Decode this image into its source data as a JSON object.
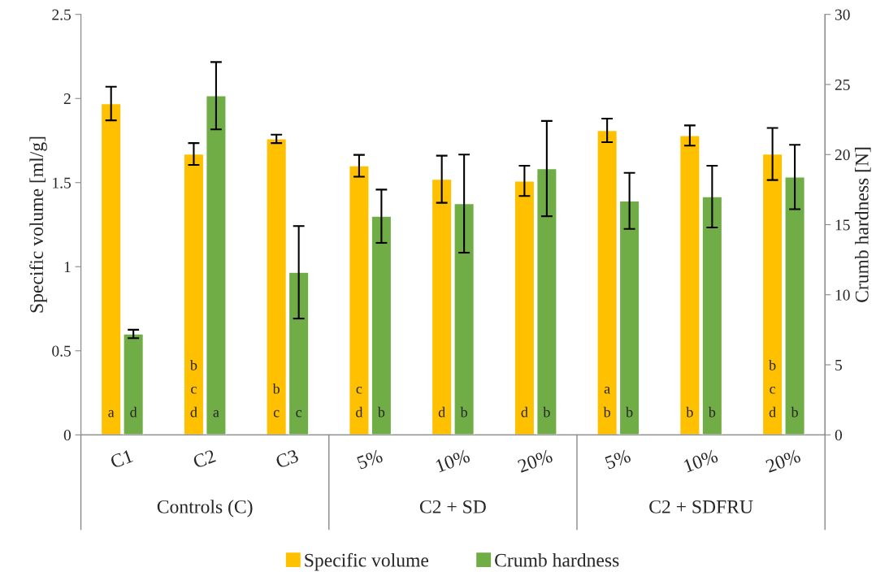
{
  "chart_data": {
    "type": "bar",
    "ylabel": "Specific volume [ml/g]",
    "y2label": "Crumb hardness [N]",
    "categories": [
      "C1",
      "C2",
      "C3",
      "5%",
      "10%",
      "20%",
      "5%",
      "10%",
      "20%"
    ],
    "annotations": [
      "Controls (C)",
      "C2 + SD",
      "C2 + SDFRU"
    ],
    "ylim": [
      0,
      2.5
    ],
    "yticks": [
      0,
      0.5,
      1,
      1.5,
      2,
      2.5
    ],
    "y2lim": [
      0,
      30
    ],
    "y2ticks": [
      0,
      5,
      10,
      15,
      20,
      25,
      30
    ],
    "grid": false,
    "legend": "bottom",
    "series": [
      {
        "name": "Specific volume",
        "color": "#ffc000",
        "values": [
          1.97,
          1.67,
          1.76,
          1.6,
          1.52,
          1.51,
          1.81,
          1.78,
          1.67
        ],
        "errors": [
          0.1,
          0.065,
          0.025,
          0.065,
          0.14,
          0.09,
          0.07,
          0.06,
          0.155
        ],
        "value_labels": [
          "a",
          "b\nc\nd",
          "b\nc",
          "c\nd",
          "d",
          "d",
          "a\nb",
          "b",
          "b\nc\nd"
        ]
      },
      {
        "name": "Crumb hardness",
        "color": "#70ad47",
        "axis": "y2",
        "values": [
          7.2,
          24.2,
          11.6,
          15.6,
          16.5,
          19.0,
          16.7,
          17.0,
          18.4
        ],
        "errors": [
          0.3,
          2.4,
          3.3,
          1.9,
          3.5,
          3.4,
          2.0,
          2.2,
          2.3
        ],
        "value_labels": [
          "d",
          "a",
          "c",
          "b",
          "b",
          "b",
          "b",
          "b",
          "b"
        ]
      }
    ]
  }
}
